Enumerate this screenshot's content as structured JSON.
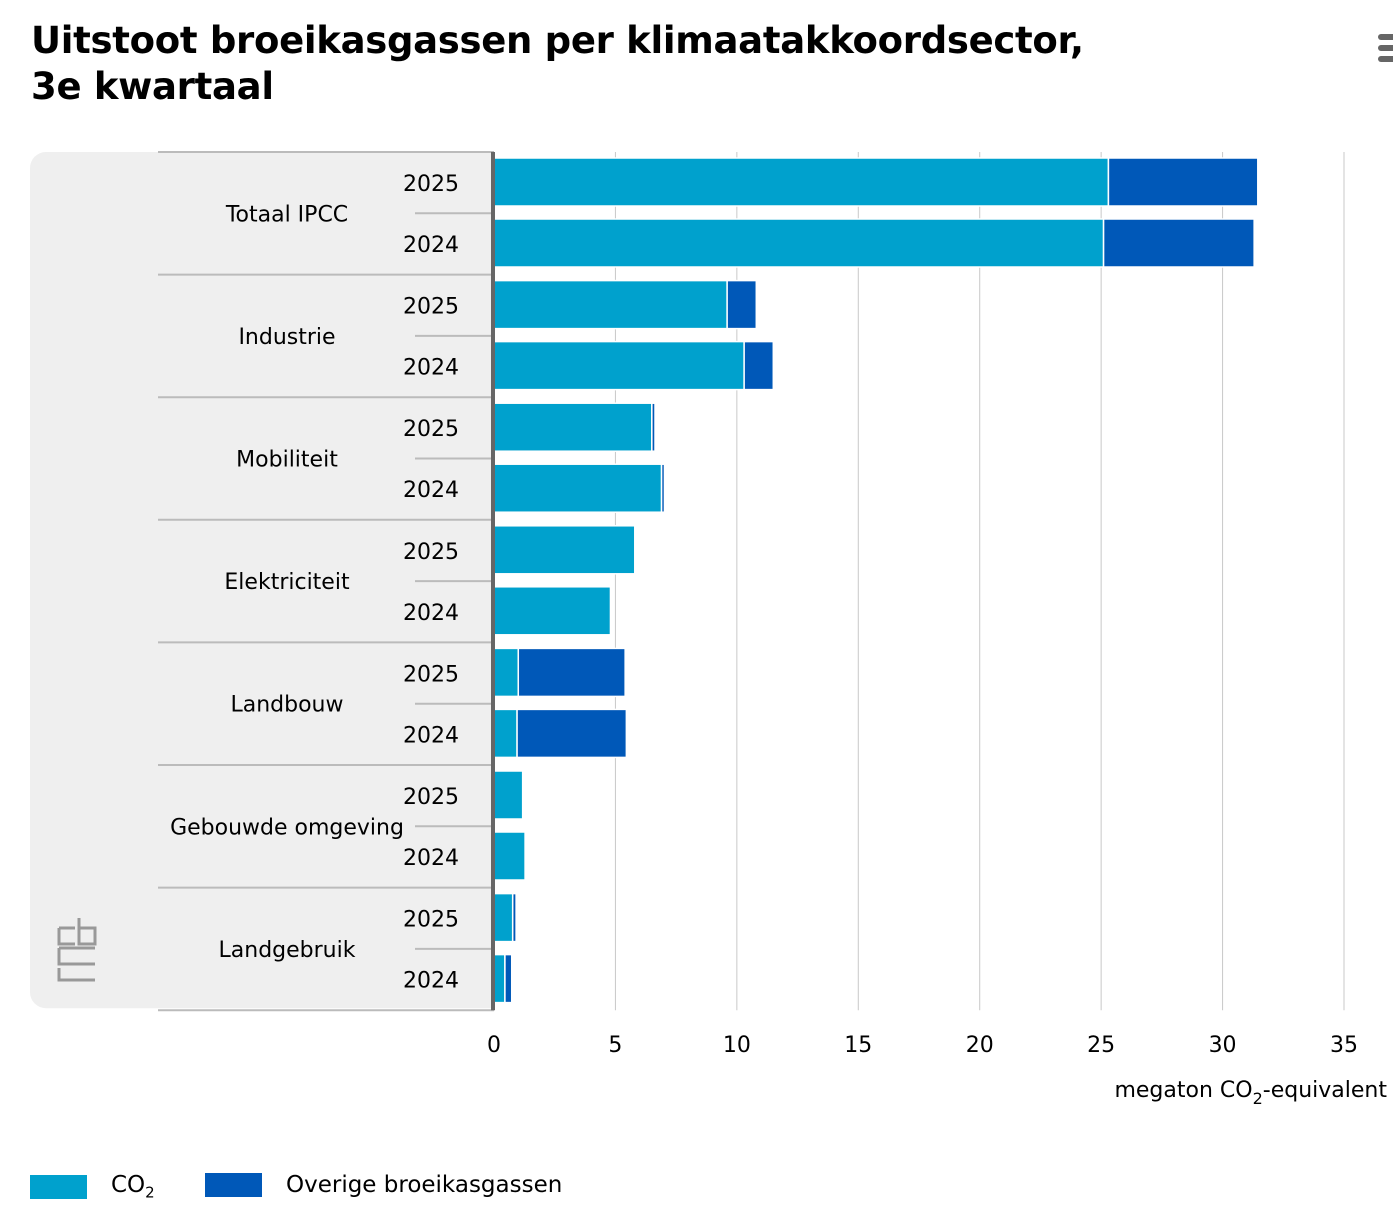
{
  "chart_data": {
    "type": "bar",
    "orientation": "horizontal",
    "stacked": true,
    "title": "Uitstoot broeikasgassen per klimaatakkoordsector, 3e kwartaal",
    "xlabel": "megaton CO2-equivalent",
    "xlabel_parts": {
      "pre": "megaton CO",
      "sub": "2",
      "post": "-equivalent"
    },
    "xlim": [
      0,
      35
    ],
    "xticks": [
      0,
      5,
      10,
      15,
      20,
      25,
      30,
      35
    ],
    "grid": true,
    "legend_position": "bottom-left",
    "groups": [
      "Totaal IPCC",
      "Industrie",
      "Mobiliteit",
      "Elektriciteit",
      "Landbouw",
      "Gebouwde omgeving",
      "Landgebruik"
    ],
    "years": [
      "2025",
      "2024"
    ],
    "series": [
      {
        "name": "CO2",
        "label_pre": "CO",
        "label_sub": "2",
        "color": "#00a1cd",
        "values": [
          [
            25.3,
            25.1
          ],
          [
            9.6,
            10.3
          ],
          [
            6.5,
            6.9
          ],
          [
            5.8,
            4.8
          ],
          [
            1.0,
            0.95
          ],
          [
            1.18,
            1.28
          ],
          [
            0.77,
            0.45
          ]
        ]
      },
      {
        "name": "Overige broeikasgassen",
        "label_pre": "Overige broeikasgassen",
        "label_sub": "",
        "color": "#0058b8",
        "values": [
          [
            6.15,
            6.2
          ],
          [
            1.2,
            1.2
          ],
          [
            0.13,
            0.12
          ],
          [
            0.03,
            0.02
          ],
          [
            4.4,
            4.5
          ],
          [
            0.0,
            0.0
          ],
          [
            0.14,
            0.28
          ]
        ]
      }
    ]
  }
}
